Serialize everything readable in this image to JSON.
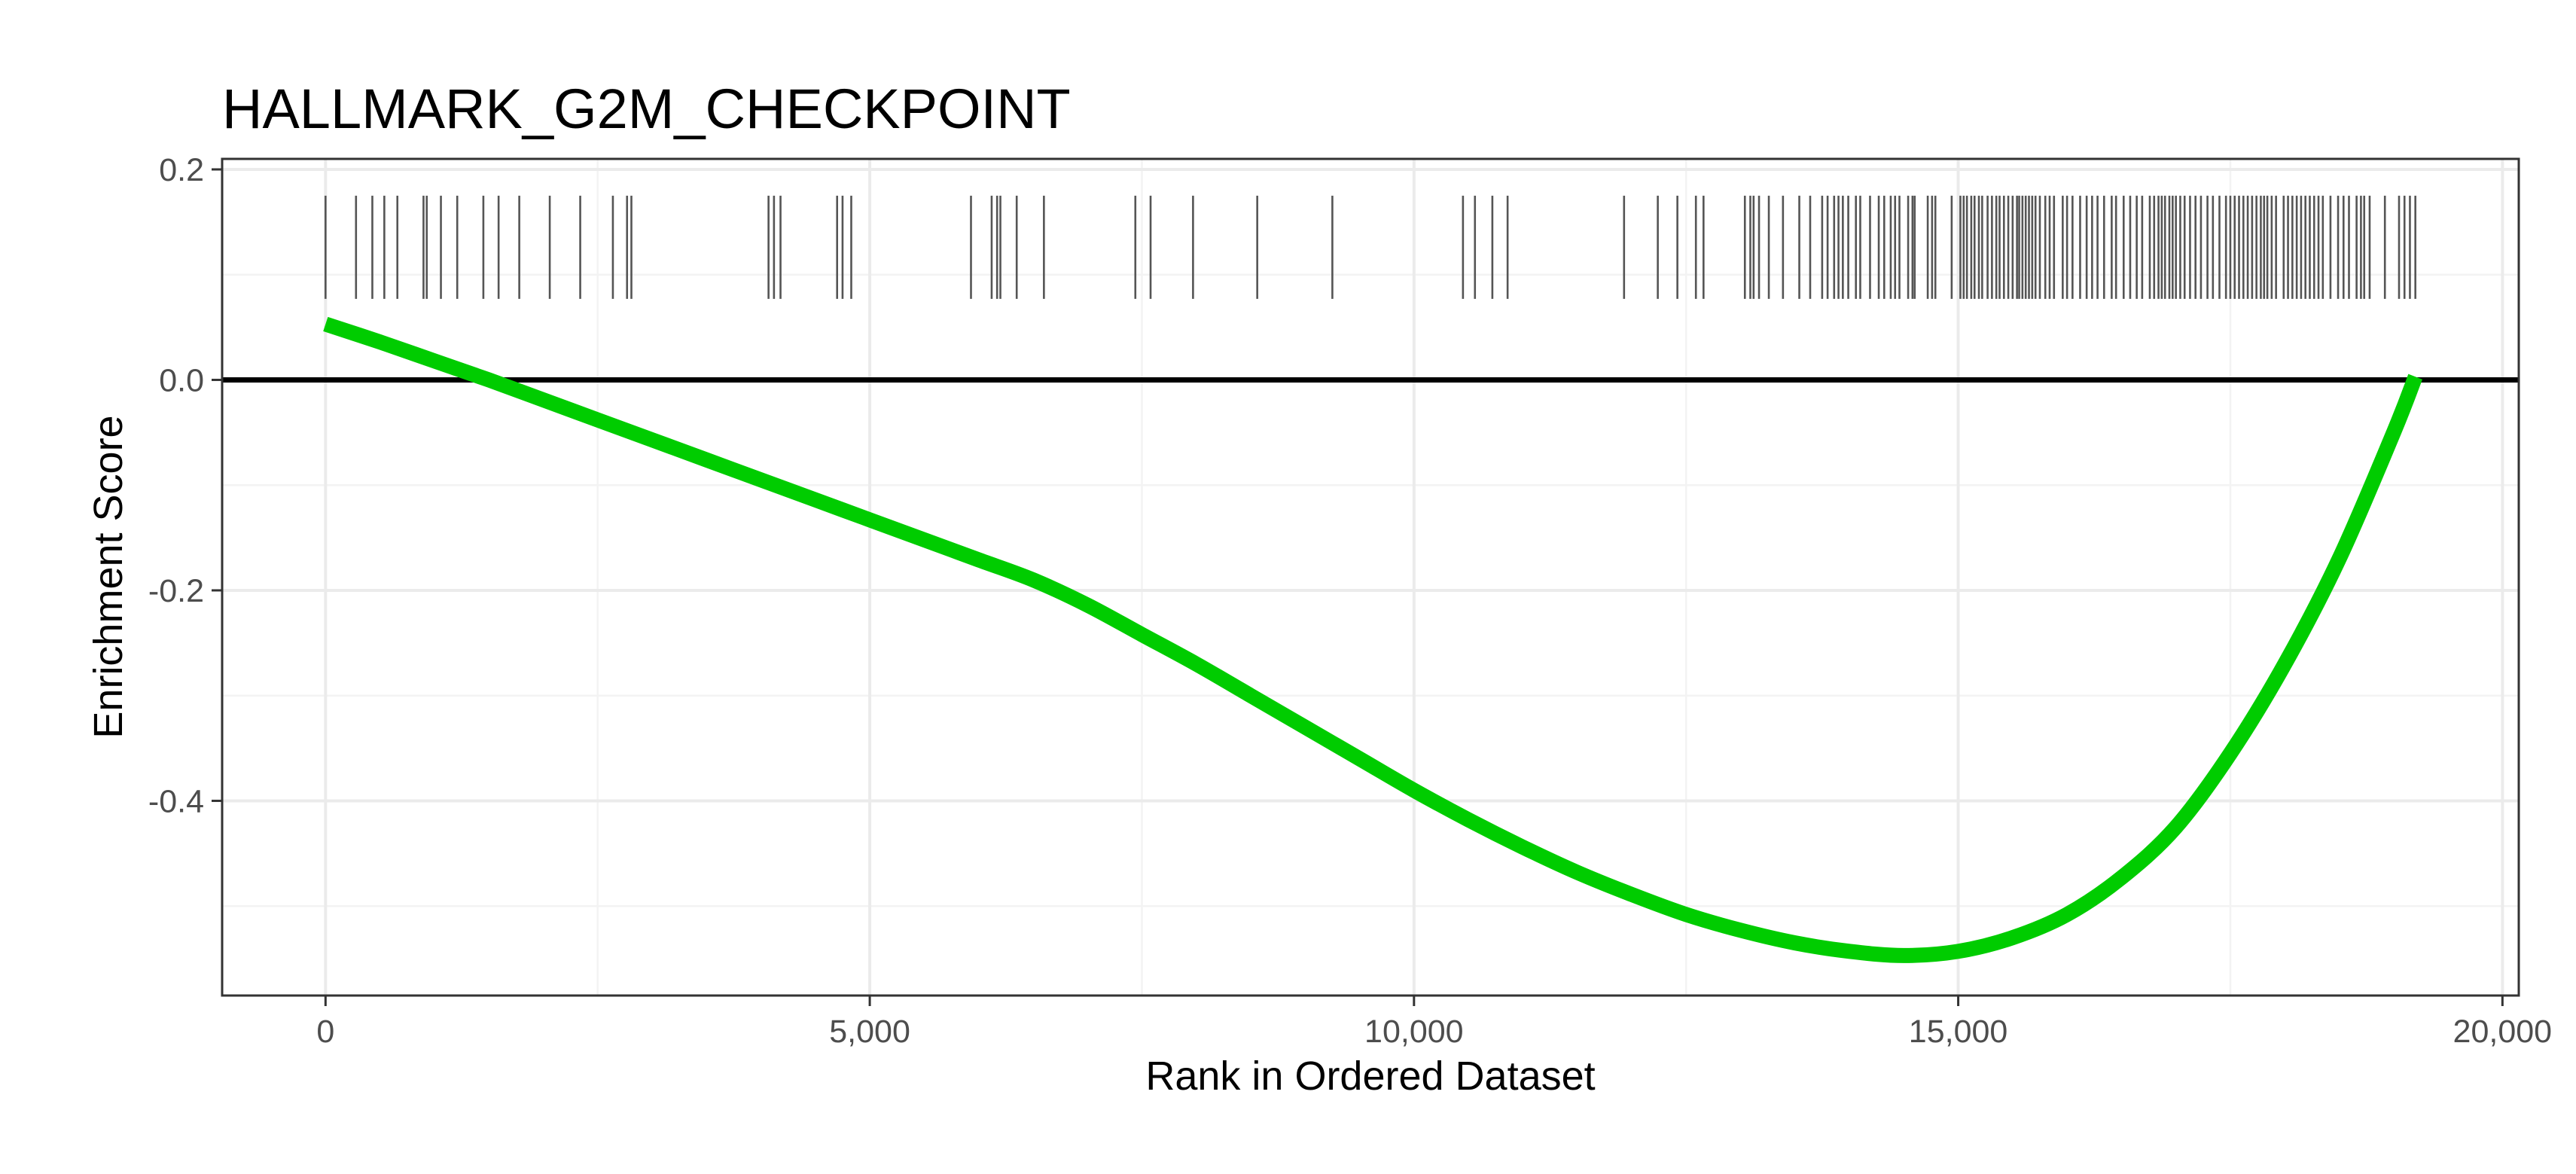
{
  "chart_data": {
    "type": "line",
    "title": "HALLMARK_G2M_CHECKPOINT",
    "xlabel": "Rank in Ordered Dataset",
    "ylabel": "Enrichment Score",
    "xlim": [
      -950,
      20150
    ],
    "ylim": [
      -0.585,
      0.21
    ],
    "x_ticks": [
      0,
      5000,
      10000,
      15000,
      20000
    ],
    "x_tick_labels": [
      "0",
      "5,000",
      "10,000",
      "15,000",
      "20,000"
    ],
    "y_ticks": [
      -0.4,
      -0.2,
      0.0,
      0.2
    ],
    "y_tick_labels": [
      "-0.4",
      "-0.2",
      "0.0",
      "0.2"
    ],
    "grid": true,
    "reference_line": {
      "y": 0.0,
      "color": "#000000"
    },
    "series": [
      {
        "color": "#00cc00",
        "x": [
          0,
          500,
          1000,
          1500,
          2000,
          2500,
          3000,
          3500,
          4000,
          4500,
          5000,
          5500,
          6000,
          6500,
          7000,
          7500,
          8000,
          8500,
          9000,
          9500,
          10000,
          10500,
          11000,
          11500,
          12000,
          12500,
          13000,
          13500,
          14000,
          14500,
          15000,
          15500,
          16000,
          16500,
          17000,
          17500,
          18000,
          18500,
          19000,
          19200
        ],
        "y": [
          0.053,
          0.036,
          0.018,
          0.0,
          -0.019,
          -0.038,
          -0.057,
          -0.076,
          -0.095,
          -0.114,
          -0.133,
          -0.152,
          -0.171,
          -0.19,
          -0.214,
          -0.242,
          -0.27,
          -0.3,
          -0.33,
          -0.36,
          -0.39,
          -0.418,
          -0.444,
          -0.468,
          -0.489,
          -0.508,
          -0.523,
          -0.535,
          -0.543,
          -0.547,
          -0.543,
          -0.53,
          -0.508,
          -0.473,
          -0.425,
          -0.355,
          -0.27,
          -0.17,
          -0.05,
          0.003
        ]
      }
    ],
    "rug": {
      "y_range": [
        0.077,
        0.175
      ],
      "color": "#555555",
      "positions": [
        0,
        280,
        430,
        540,
        660,
        900,
        930,
        1060,
        1210,
        1450,
        1590,
        1780,
        2060,
        2340,
        2640,
        2770,
        2810,
        4070,
        4120,
        4180,
        4700,
        4750,
        4830,
        5930,
        6120,
        6170,
        6200,
        6350,
        6600,
        7440,
        7580,
        7970,
        8560,
        9250,
        10450,
        10560,
        10720,
        10860,
        11930,
        12240,
        12420,
        12590,
        12660,
        13040,
        13090,
        13120,
        13170,
        13260,
        13390,
        13540,
        13640,
        13750,
        13800,
        13860,
        13900,
        13940,
        13990,
        14060,
        14100,
        14190,
        14270,
        14320,
        14380,
        14420,
        14460,
        14540,
        14580,
        14600,
        14720,
        14760,
        14790,
        14940,
        15020,
        15050,
        15080,
        15120,
        15150,
        15190,
        15220,
        15270,
        15310,
        15350,
        15380,
        15420,
        15460,
        15500,
        15540,
        15560,
        15590,
        15620,
        15650,
        15680,
        15710,
        15750,
        15800,
        15840,
        15880,
        15960,
        16000,
        16050,
        16120,
        16180,
        16230,
        16280,
        16340,
        16410,
        16450,
        16520,
        16580,
        16640,
        16690,
        16760,
        16800,
        16840,
        16870,
        16900,
        16940,
        16970,
        17000,
        17040,
        17080,
        17130,
        17180,
        17230,
        17290,
        17340,
        17400,
        17460,
        17500,
        17540,
        17580,
        17620,
        17660,
        17700,
        17740,
        17780,
        17810,
        17840,
        17880,
        17920,
        17990,
        18030,
        18070,
        18110,
        18150,
        18190,
        18230,
        18270,
        18310,
        18350,
        18420,
        18490,
        18540,
        18590,
        18660,
        18700,
        18730,
        18780,
        18920,
        19050,
        19100,
        19150,
        19200
      ]
    }
  }
}
